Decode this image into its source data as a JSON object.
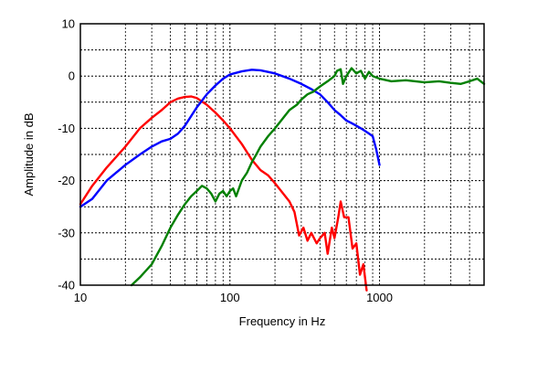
{
  "chart_data": {
    "type": "line",
    "xscale": "log",
    "xlim": [
      10,
      5000
    ],
    "ylim": [
      -40,
      10
    ],
    "xlabel": "Frequency  in  Hz",
    "ylabel": "Amplitude in dB",
    "x_tick_labels": [
      {
        "value": 10,
        "label": "10"
      },
      {
        "value": 100,
        "label": "100"
      },
      {
        "value": 1000,
        "label": "1000"
      }
    ],
    "y_tick_labels": [
      {
        "value": 10,
        "label": "10"
      },
      {
        "value": 0,
        "label": "0"
      },
      {
        "value": -10,
        "label": "-10"
      },
      {
        "value": -20,
        "label": "-20"
      },
      {
        "value": -30,
        "label": "-30"
      },
      {
        "value": -40,
        "label": "-40"
      }
    ],
    "grid": true,
    "series": [
      {
        "color": "#ff0000",
        "points": [
          [
            10,
            -24.5
          ],
          [
            12,
            -21
          ],
          [
            15,
            -17.5
          ],
          [
            20,
            -13.5
          ],
          [
            25,
            -10
          ],
          [
            30,
            -8
          ],
          [
            35,
            -6.5
          ],
          [
            40,
            -5
          ],
          [
            45,
            -4.3
          ],
          [
            50,
            -4
          ],
          [
            55,
            -3.9
          ],
          [
            60,
            -4.2
          ],
          [
            70,
            -5.5
          ],
          [
            80,
            -7
          ],
          [
            90,
            -8.5
          ],
          [
            100,
            -10
          ],
          [
            120,
            -13
          ],
          [
            140,
            -16
          ],
          [
            160,
            -18
          ],
          [
            180,
            -19
          ],
          [
            200,
            -20.5
          ],
          [
            220,
            -22
          ],
          [
            250,
            -24
          ],
          [
            270,
            -26
          ],
          [
            290,
            -30.5
          ],
          [
            310,
            -29
          ],
          [
            330,
            -31.5
          ],
          [
            350,
            -30
          ],
          [
            380,
            -32
          ],
          [
            400,
            -31
          ],
          [
            430,
            -30
          ],
          [
            450,
            -34
          ],
          [
            480,
            -29
          ],
          [
            500,
            -31
          ],
          [
            530,
            -27
          ],
          [
            550,
            -24
          ],
          [
            580,
            -27
          ],
          [
            620,
            -27
          ],
          [
            660,
            -33
          ],
          [
            700,
            -32
          ],
          [
            740,
            -38
          ],
          [
            780,
            -36
          ],
          [
            820,
            -41
          ]
        ]
      },
      {
        "color": "#0000ff",
        "points": [
          [
            10,
            -25
          ],
          [
            12,
            -23.5
          ],
          [
            15,
            -20
          ],
          [
            20,
            -17
          ],
          [
            25,
            -15
          ],
          [
            30,
            -13.5
          ],
          [
            35,
            -12.5
          ],
          [
            40,
            -12
          ],
          [
            45,
            -11
          ],
          [
            50,
            -9.5
          ],
          [
            60,
            -6
          ],
          [
            70,
            -3.5
          ],
          [
            80,
            -1.8
          ],
          [
            90,
            -0.5
          ],
          [
            100,
            0.3
          ],
          [
            120,
            0.9
          ],
          [
            140,
            1.2
          ],
          [
            160,
            1.1
          ],
          [
            200,
            0.5
          ],
          [
            250,
            -0.5
          ],
          [
            300,
            -1.5
          ],
          [
            350,
            -2.5
          ],
          [
            400,
            -3.5
          ],
          [
            450,
            -5
          ],
          [
            500,
            -6.5
          ],
          [
            550,
            -7.5
          ],
          [
            600,
            -8.5
          ],
          [
            650,
            -9
          ],
          [
            700,
            -9.5
          ],
          [
            750,
            -10
          ],
          [
            800,
            -10.5
          ],
          [
            850,
            -11
          ],
          [
            900,
            -11.5
          ],
          [
            950,
            -14
          ],
          [
            1000,
            -17
          ]
        ]
      },
      {
        "color": "#008000",
        "points": [
          [
            22,
            -40
          ],
          [
            25,
            -38.5
          ],
          [
            30,
            -36
          ],
          [
            35,
            -32.5
          ],
          [
            40,
            -29
          ],
          [
            45,
            -26.5
          ],
          [
            50,
            -24.5
          ],
          [
            55,
            -23
          ],
          [
            60,
            -22
          ],
          [
            65,
            -21
          ],
          [
            70,
            -21.5
          ],
          [
            75,
            -22.5
          ],
          [
            80,
            -24
          ],
          [
            85,
            -22.5
          ],
          [
            90,
            -22
          ],
          [
            95,
            -23
          ],
          [
            100,
            -22
          ],
          [
            105,
            -21.5
          ],
          [
            110,
            -23
          ],
          [
            120,
            -20
          ],
          [
            130,
            -18.5
          ],
          [
            140,
            -16.5
          ],
          [
            150,
            -15
          ],
          [
            160,
            -13.5
          ],
          [
            180,
            -11.5
          ],
          [
            200,
            -10
          ],
          [
            220,
            -8.5
          ],
          [
            250,
            -6.5
          ],
          [
            280,
            -5.5
          ],
          [
            300,
            -4.5
          ],
          [
            330,
            -3.5
          ],
          [
            360,
            -3
          ],
          [
            400,
            -2
          ],
          [
            450,
            -1
          ],
          [
            500,
            0
          ],
          [
            520,
            1
          ],
          [
            550,
            1.3
          ],
          [
            570,
            -1.5
          ],
          [
            600,
            0
          ],
          [
            650,
            1.5
          ],
          [
            700,
            0.5
          ],
          [
            750,
            1
          ],
          [
            800,
            -0.5
          ],
          [
            850,
            0.8
          ],
          [
            900,
            0
          ],
          [
            1000,
            -0.5
          ],
          [
            1200,
            -1
          ],
          [
            1500,
            -0.8
          ],
          [
            2000,
            -1.2
          ],
          [
            2500,
            -1
          ],
          [
            3000,
            -1.3
          ],
          [
            3500,
            -1.5
          ],
          [
            4000,
            -1
          ],
          [
            4500,
            -0.5
          ],
          [
            5000,
            -1.5
          ]
        ]
      }
    ]
  }
}
